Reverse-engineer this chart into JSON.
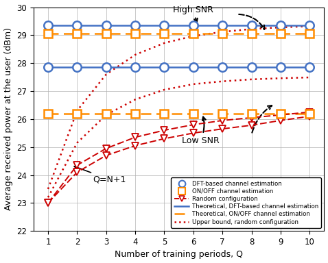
{
  "Q": [
    1,
    2,
    3,
    4,
    5,
    6,
    7,
    8,
    9,
    10
  ],
  "high_snr_dft_markers": [
    29.35,
    29.35,
    29.35,
    29.35,
    29.35,
    29.35,
    29.35,
    29.35,
    29.35,
    29.35
  ],
  "high_snr_onoff_markers": [
    29.05,
    29.05,
    29.05,
    29.05,
    29.05,
    29.05,
    29.05,
    29.05,
    29.05,
    29.05
  ],
  "high_snr_random_markers": [
    23.0,
    24.35,
    24.95,
    25.35,
    25.6,
    25.8,
    25.95,
    26.05,
    26.15,
    26.25
  ],
  "high_snr_dft_theory": [
    29.35,
    29.35,
    29.35,
    29.35,
    29.35,
    29.35,
    29.35,
    29.35,
    29.35,
    29.35
  ],
  "high_snr_onoff_theory": [
    29.05,
    29.05,
    29.05,
    29.05,
    29.05,
    29.05,
    29.05,
    29.05,
    29.05,
    29.05
  ],
  "high_snr_random_upper": [
    23.5,
    26.3,
    27.6,
    28.3,
    28.72,
    28.97,
    29.12,
    29.22,
    29.28,
    29.32
  ],
  "low_snr_dft_markers": [
    27.85,
    27.85,
    27.85,
    27.85,
    27.85,
    27.85,
    27.85,
    27.85,
    27.85,
    27.85
  ],
  "low_snr_onoff_markers": [
    26.2,
    26.2,
    26.2,
    26.2,
    26.2,
    26.2,
    26.2,
    26.2,
    26.2,
    26.2
  ],
  "low_snr_random_markers": [
    23.0,
    24.1,
    24.7,
    25.05,
    25.3,
    25.5,
    25.65,
    25.78,
    25.95,
    26.1
  ],
  "low_snr_dft_theory": [
    27.85,
    27.85,
    27.85,
    27.85,
    27.85,
    27.85,
    27.85,
    27.85,
    27.85,
    27.85
  ],
  "low_snr_onoff_theory": [
    26.2,
    26.2,
    26.2,
    26.2,
    26.2,
    26.2,
    26.2,
    26.2,
    26.2,
    26.2
  ],
  "low_snr_random_upper": [
    23.2,
    25.15,
    26.15,
    26.7,
    27.05,
    27.25,
    27.35,
    27.42,
    27.46,
    27.49
  ],
  "color_blue": "#4472C4",
  "color_orange": "#FF8C00",
  "color_red": "#CC0000",
  "ylim": [
    22,
    30
  ],
  "xlim_min": 0.5,
  "xlim_max": 10.5,
  "xlabel": "Number of training periods, Q",
  "ylabel": "Average received power at the user (dBm)",
  "yticks": [
    22,
    23,
    24,
    25,
    26,
    27,
    28,
    29,
    30
  ],
  "xticks": [
    1,
    2,
    3,
    4,
    5,
    6,
    7,
    8,
    9,
    10
  ]
}
